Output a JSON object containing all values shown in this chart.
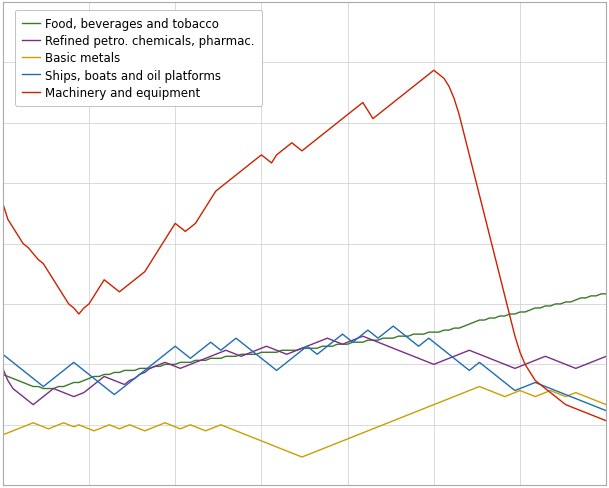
{
  "legend_entries": [
    "Food, beverages and tobacco",
    "Refined petro. chemicals, pharmac.",
    "Basic metals",
    "Ships, boats and oil platforms",
    "Machinery and equipment"
  ],
  "line_colors": [
    "#3a7a28",
    "#7b2d8b",
    "#c8a000",
    "#1e6db5",
    "#cc2200"
  ],
  "background_color": "#ffffff",
  "grid_color": "#cccccc",
  "food_bev": [
    9.5,
    9.4,
    9.3,
    9.2,
    9.1,
    9.0,
    8.9,
    8.9,
    8.8,
    8.8,
    8.8,
    8.9,
    8.9,
    9.0,
    9.1,
    9.1,
    9.2,
    9.3,
    9.4,
    9.4,
    9.5,
    9.5,
    9.6,
    9.6,
    9.7,
    9.7,
    9.7,
    9.8,
    9.8,
    9.8,
    9.9,
    9.9,
    10.0,
    10.0,
    10.0,
    10.1,
    10.1,
    10.1,
    10.2,
    10.2,
    10.2,
    10.3,
    10.3,
    10.3,
    10.4,
    10.4,
    10.4,
    10.5,
    10.5,
    10.5,
    10.5,
    10.6,
    10.6,
    10.6,
    10.6,
    10.7,
    10.7,
    10.7,
    10.7,
    10.8,
    10.8,
    10.8,
    10.8,
    10.9,
    10.9,
    10.9,
    11.0,
    11.0,
    11.0,
    11.1,
    11.1,
    11.1,
    11.2,
    11.2,
    11.2,
    11.3,
    11.3,
    11.3,
    11.4,
    11.4,
    11.4,
    11.5,
    11.5,
    11.5,
    11.6,
    11.6,
    11.6,
    11.7,
    11.7,
    11.8,
    11.8,
    11.9,
    12.0,
    12.1,
    12.2,
    12.2,
    12.3,
    12.3,
    12.4,
    12.4,
    12.5,
    12.5,
    12.6,
    12.6,
    12.7,
    12.8,
    12.8,
    12.9,
    12.9,
    13.0,
    13.0,
    13.1,
    13.1,
    13.2,
    13.3,
    13.3,
    13.4,
    13.4,
    13.5,
    13.5
  ],
  "refined_petro": [
    9.8,
    9.2,
    8.8,
    8.6,
    8.4,
    8.2,
    8.0,
    8.2,
    8.4,
    8.6,
    8.8,
    8.7,
    8.6,
    8.5,
    8.4,
    8.5,
    8.6,
    8.8,
    9.0,
    9.2,
    9.4,
    9.3,
    9.2,
    9.1,
    9.0,
    9.2,
    9.3,
    9.5,
    9.6,
    9.8,
    9.9,
    10.0,
    10.1,
    10.0,
    9.9,
    9.8,
    9.9,
    10.0,
    10.1,
    10.2,
    10.3,
    10.4,
    10.5,
    10.6,
    10.7,
    10.6,
    10.5,
    10.4,
    10.5,
    10.6,
    10.7,
    10.8,
    10.9,
    10.8,
    10.7,
    10.6,
    10.5,
    10.6,
    10.7,
    10.8,
    10.9,
    11.0,
    11.1,
    11.2,
    11.3,
    11.2,
    11.1,
    11.0,
    11.1,
    11.2,
    11.3,
    11.4,
    11.3,
    11.2,
    11.1,
    11.0,
    10.9,
    10.8,
    10.7,
    10.6,
    10.5,
    10.4,
    10.3,
    10.2,
    10.1,
    10.0,
    10.1,
    10.2,
    10.3,
    10.4,
    10.5,
    10.6,
    10.7,
    10.6,
    10.5,
    10.4,
    10.3,
    10.2,
    10.1,
    10.0,
    9.9,
    9.8,
    9.9,
    10.0,
    10.1,
    10.2,
    10.3,
    10.4,
    10.3,
    10.2,
    10.1,
    10.0,
    9.9,
    9.8,
    9.9,
    10.0,
    10.1,
    10.2,
    10.3,
    10.4
  ],
  "basic_metals": [
    6.5,
    6.6,
    6.7,
    6.8,
    6.9,
    7.0,
    7.1,
    7.0,
    6.9,
    6.8,
    6.9,
    7.0,
    7.1,
    7.0,
    6.9,
    7.0,
    6.9,
    6.8,
    6.7,
    6.8,
    6.9,
    7.0,
    6.9,
    6.8,
    6.9,
    7.0,
    6.9,
    6.8,
    6.7,
    6.8,
    6.9,
    7.0,
    7.1,
    7.0,
    6.9,
    6.8,
    6.9,
    7.0,
    6.9,
    6.8,
    6.7,
    6.8,
    6.9,
    7.0,
    6.9,
    6.8,
    6.7,
    6.6,
    6.5,
    6.4,
    6.3,
    6.2,
    6.1,
    6.0,
    5.9,
    5.8,
    5.7,
    5.6,
    5.5,
    5.4,
    5.5,
    5.6,
    5.7,
    5.8,
    5.9,
    6.0,
    6.1,
    6.2,
    6.3,
    6.4,
    6.5,
    6.6,
    6.7,
    6.8,
    6.9,
    7.0,
    7.1,
    7.2,
    7.3,
    7.4,
    7.5,
    7.6,
    7.7,
    7.8,
    7.9,
    8.0,
    8.1,
    8.2,
    8.3,
    8.4,
    8.5,
    8.6,
    8.7,
    8.8,
    8.9,
    8.8,
    8.7,
    8.6,
    8.5,
    8.4,
    8.5,
    8.6,
    8.7,
    8.6,
    8.5,
    8.4,
    8.5,
    8.6,
    8.7,
    8.6,
    8.5,
    8.4,
    8.5,
    8.6,
    8.5,
    8.4,
    8.3,
    8.2,
    8.1,
    8.0
  ],
  "ships_boats": [
    10.5,
    10.3,
    10.1,
    9.9,
    9.7,
    9.5,
    9.3,
    9.1,
    8.9,
    9.1,
    9.3,
    9.5,
    9.7,
    9.9,
    10.1,
    9.9,
    9.7,
    9.5,
    9.3,
    9.1,
    8.9,
    8.7,
    8.5,
    8.7,
    8.9,
    9.1,
    9.3,
    9.5,
    9.7,
    9.9,
    10.1,
    10.3,
    10.5,
    10.7,
    10.9,
    10.7,
    10.5,
    10.3,
    10.5,
    10.7,
    10.9,
    11.1,
    10.9,
    10.7,
    10.9,
    11.1,
    11.3,
    11.1,
    10.9,
    10.7,
    10.5,
    10.3,
    10.1,
    9.9,
    9.7,
    9.9,
    10.1,
    10.3,
    10.5,
    10.7,
    10.9,
    10.7,
    10.5,
    10.7,
    10.9,
    11.1,
    11.3,
    11.5,
    11.3,
    11.1,
    11.3,
    11.5,
    11.7,
    11.5,
    11.3,
    11.5,
    11.7,
    11.9,
    11.7,
    11.5,
    11.3,
    11.1,
    10.9,
    11.1,
    11.3,
    11.1,
    10.9,
    10.7,
    10.5,
    10.3,
    10.1,
    9.9,
    9.7,
    9.9,
    10.1,
    9.9,
    9.7,
    9.5,
    9.3,
    9.1,
    8.9,
    8.7,
    8.8,
    8.9,
    9.0,
    9.1,
    9.0,
    8.9,
    8.8,
    8.7,
    8.6,
    8.5,
    8.4,
    8.3,
    8.2,
    8.1,
    8.0,
    7.9,
    7.8,
    7.7
  ],
  "machinery": [
    18.0,
    17.2,
    16.8,
    16.4,
    16.0,
    15.8,
    15.5,
    15.2,
    15.0,
    14.6,
    14.2,
    13.8,
    13.4,
    13.0,
    12.8,
    12.5,
    12.8,
    13.0,
    13.4,
    13.8,
    14.2,
    14.0,
    13.8,
    13.6,
    13.8,
    14.0,
    14.2,
    14.4,
    14.6,
    15.0,
    15.4,
    15.8,
    16.2,
    16.6,
    17.0,
    16.8,
    16.6,
    16.8,
    17.0,
    17.4,
    17.8,
    18.2,
    18.6,
    18.8,
    19.0,
    19.2,
    19.4,
    19.6,
    19.8,
    20.0,
    20.2,
    20.4,
    20.2,
    20.0,
    20.4,
    20.6,
    20.8,
    21.0,
    20.8,
    20.6,
    20.8,
    21.0,
    21.2,
    21.4,
    21.6,
    21.8,
    22.0,
    22.2,
    22.4,
    22.6,
    22.8,
    23.0,
    22.6,
    22.2,
    22.4,
    22.6,
    22.8,
    23.0,
    23.2,
    23.4,
    23.6,
    23.8,
    24.0,
    24.2,
    24.4,
    24.6,
    24.4,
    24.2,
    23.8,
    23.2,
    22.4,
    21.4,
    20.4,
    19.4,
    18.4,
    17.4,
    16.4,
    15.4,
    14.4,
    13.4,
    12.4,
    11.4,
    10.6,
    10.0,
    9.6,
    9.2,
    9.0,
    8.8,
    8.6,
    8.4,
    8.2,
    8.0,
    7.9,
    7.8,
    7.7,
    7.6,
    7.5,
    7.4,
    7.3,
    7.2
  ],
  "ylim": [
    4.0,
    28.0
  ]
}
